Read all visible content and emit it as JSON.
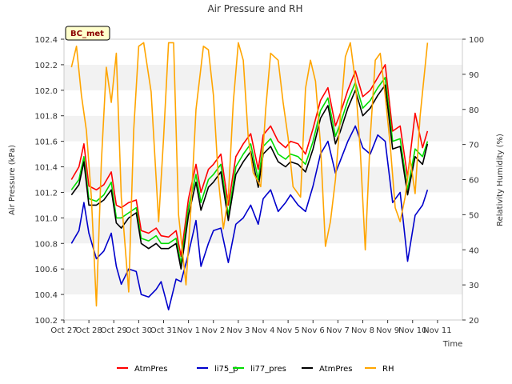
{
  "chart_data": {
    "type": "line",
    "title": "Air Pressure and RH",
    "site_label": "BC_met",
    "xlabel": "Time",
    "ylabel": "Air Pressure (kPa)",
    "y2label": "Relativity Humidity (%)",
    "x_ticks": [
      "Oct 27",
      "Oct 28",
      "Oct 29",
      "Oct 30",
      "Oct 31",
      "Nov 1",
      "Nov 2",
      "Nov 3",
      "Nov 4",
      "Nov 5",
      "Nov 6",
      "Nov 7",
      "Nov 8",
      "Nov 9",
      "Nov 10",
      "Nov 11"
    ],
    "xlim": [
      0,
      16
    ],
    "ylim": [
      100.2,
      102.4
    ],
    "y_ticks": [
      100.2,
      100.4,
      100.6,
      100.8,
      101.0,
      101.2,
      101.4,
      101.6,
      101.8,
      102.0,
      102.2,
      102.4
    ],
    "y_tick_labels": [
      "100.2",
      "100.4",
      "100.6",
      "100.8",
      "101.0",
      "101.2",
      "101.4",
      "101.6",
      "101.8",
      "102.0",
      "102.2",
      "102.4"
    ],
    "y2lim": [
      20,
      100
    ],
    "y2_ticks": [
      20,
      30,
      40,
      50,
      60,
      70,
      80,
      90,
      100
    ],
    "y2_tick_labels": [
      "20",
      "30",
      "40",
      "50",
      "60",
      "70",
      "80",
      "90",
      "100"
    ],
    "grid": "horizontal bands",
    "legend_position": "bottom",
    "series": [
      {
        "name": "AtmPres",
        "color": "#ff0000",
        "axis": "left",
        "x": [
          0.3,
          0.6,
          0.8,
          1.0,
          1.3,
          1.6,
          1.9,
          2.1,
          2.3,
          2.6,
          2.9,
          3.1,
          3.4,
          3.7,
          3.9,
          4.2,
          4.5,
          4.7,
          5.0,
          5.3,
          5.5,
          5.8,
          6.0,
          6.3,
          6.6,
          6.9,
          7.2,
          7.5,
          7.8,
          8.0,
          8.3,
          8.6,
          8.9,
          9.1,
          9.4,
          9.7,
          10.0,
          10.3,
          10.6,
          10.9,
          11.1,
          11.4,
          11.7,
          12.0,
          12.3,
          12.6,
          12.9,
          13.2,
          13.5,
          13.8,
          14.1,
          14.4,
          14.6
        ],
        "values": [
          101.3,
          101.4,
          101.58,
          101.25,
          101.22,
          101.26,
          101.36,
          101.1,
          101.08,
          101.12,
          101.14,
          100.9,
          100.88,
          100.92,
          100.86,
          100.85,
          100.9,
          100.7,
          101.15,
          101.42,
          101.2,
          101.38,
          101.42,
          101.5,
          101.1,
          101.48,
          101.58,
          101.66,
          101.38,
          101.65,
          101.72,
          101.6,
          101.55,
          101.6,
          101.58,
          101.5,
          101.7,
          101.92,
          102.02,
          101.72,
          101.82,
          102.0,
          102.15,
          101.95,
          102.0,
          102.1,
          102.2,
          101.68,
          101.72,
          101.32,
          101.82,
          101.55,
          101.68
        ]
      },
      {
        "name": "li75_p",
        "color": "#0000cc",
        "axis": "left",
        "x": [
          0.3,
          0.6,
          0.8,
          1.0,
          1.3,
          1.6,
          1.9,
          2.1,
          2.3,
          2.6,
          2.9,
          3.1,
          3.4,
          3.7,
          3.9,
          4.2,
          4.5,
          4.7,
          5.0,
          5.3,
          5.5,
          5.8,
          6.0,
          6.3,
          6.6,
          6.9,
          7.2,
          7.5,
          7.8,
          8.0,
          8.3,
          8.6,
          8.9,
          9.1,
          9.4,
          9.7,
          10.0,
          10.3,
          10.6,
          10.9,
          11.1,
          11.4,
          11.7,
          12.0,
          12.3,
          12.6,
          12.9,
          13.2,
          13.5,
          13.8,
          14.1,
          14.4,
          14.6
        ],
        "values": [
          100.8,
          100.9,
          101.12,
          100.88,
          100.68,
          100.74,
          100.88,
          100.62,
          100.48,
          100.6,
          100.58,
          100.4,
          100.38,
          100.44,
          100.5,
          100.28,
          100.52,
          100.5,
          100.72,
          100.98,
          100.62,
          100.8,
          100.9,
          100.92,
          100.65,
          100.95,
          101.0,
          101.1,
          100.95,
          101.15,
          101.22,
          101.05,
          101.12,
          101.18,
          101.1,
          101.05,
          101.25,
          101.5,
          101.6,
          101.35,
          101.45,
          101.6,
          101.72,
          101.55,
          101.5,
          101.65,
          101.6,
          101.12,
          101.2,
          100.66,
          101.02,
          101.1,
          101.22
        ]
      },
      {
        "name": "li77_pres",
        "color": "#00dd00",
        "axis": "left",
        "x": [
          0.3,
          0.6,
          0.8,
          1.0,
          1.3,
          1.6,
          1.9,
          2.1,
          2.3,
          2.6,
          2.9,
          3.1,
          3.4,
          3.7,
          3.9,
          4.2,
          4.5,
          4.7,
          5.0,
          5.3,
          5.5,
          5.8,
          6.0,
          6.3,
          6.6,
          6.9,
          7.2,
          7.5,
          7.8,
          8.0,
          8.3,
          8.6,
          8.9,
          9.1,
          9.4,
          9.7,
          10.0,
          10.3,
          10.6,
          10.9,
          11.1,
          11.4,
          11.7,
          12.0,
          12.3,
          12.6,
          12.9,
          13.2,
          13.5,
          13.8,
          14.1,
          14.4,
          14.6
        ],
        "values": [
          101.22,
          101.3,
          101.48,
          101.15,
          101.13,
          101.18,
          101.28,
          101.0,
          101.0,
          101.04,
          101.08,
          100.84,
          100.82,
          100.86,
          100.8,
          100.8,
          100.84,
          100.64,
          101.08,
          101.34,
          101.12,
          101.3,
          101.34,
          101.42,
          101.02,
          101.4,
          101.5,
          101.58,
          101.3,
          101.56,
          101.62,
          101.5,
          101.46,
          101.5,
          101.48,
          101.42,
          101.6,
          101.84,
          101.94,
          101.64,
          101.74,
          101.92,
          102.06,
          101.86,
          101.92,
          102.02,
          102.1,
          101.6,
          101.62,
          101.22,
          101.54,
          101.48,
          101.6
        ]
      },
      {
        "name": "AtmPres",
        "color": "#000000",
        "axis": "left",
        "x": [
          0.3,
          0.6,
          0.8,
          1.0,
          1.3,
          1.6,
          1.9,
          2.1,
          2.3,
          2.6,
          2.9,
          3.1,
          3.4,
          3.7,
          3.9,
          4.2,
          4.5,
          4.7,
          5.0,
          5.3,
          5.5,
          5.8,
          6.0,
          6.3,
          6.6,
          6.9,
          7.2,
          7.5,
          7.8,
          8.0,
          8.3,
          8.6,
          8.9,
          9.1,
          9.4,
          9.7,
          10.0,
          10.3,
          10.6,
          10.9,
          11.1,
          11.4,
          11.7,
          12.0,
          12.3,
          12.6,
          12.9,
          13.2,
          13.5,
          13.8,
          14.1,
          14.4,
          14.6
        ],
        "values": [
          101.18,
          101.26,
          101.44,
          101.1,
          101.1,
          101.14,
          101.22,
          100.96,
          100.92,
          101.0,
          101.04,
          100.8,
          100.76,
          100.8,
          100.76,
          100.76,
          100.8,
          100.6,
          101.02,
          101.28,
          101.06,
          101.24,
          101.28,
          101.36,
          100.98,
          101.34,
          101.44,
          101.52,
          101.24,
          101.5,
          101.56,
          101.44,
          101.4,
          101.44,
          101.42,
          101.36,
          101.54,
          101.78,
          101.88,
          101.58,
          101.68,
          101.86,
          102.0,
          101.8,
          101.86,
          101.96,
          102.04,
          101.54,
          101.56,
          101.18,
          101.48,
          101.42,
          101.58
        ]
      },
      {
        "name": "RH",
        "color": "#ffa500",
        "axis": "right",
        "x": [
          0.3,
          0.5,
          0.7,
          0.9,
          1.1,
          1.3,
          1.5,
          1.7,
          1.9,
          2.1,
          2.3,
          2.6,
          2.8,
          3.0,
          3.2,
          3.5,
          3.8,
          4.0,
          4.2,
          4.4,
          4.6,
          4.9,
          5.1,
          5.3,
          5.6,
          5.8,
          6.0,
          6.2,
          6.4,
          6.6,
          6.8,
          7.0,
          7.2,
          7.4,
          7.6,
          7.9,
          8.1,
          8.3,
          8.6,
          8.8,
          9.0,
          9.2,
          9.5,
          9.7,
          9.9,
          10.1,
          10.3,
          10.5,
          10.7,
          10.9,
          11.1,
          11.3,
          11.5,
          11.7,
          11.9,
          12.1,
          12.3,
          12.5,
          12.7,
          12.9,
          13.1,
          13.3,
          13.5,
          13.7,
          13.9,
          14.1,
          14.3,
          14.5,
          14.6
        ],
        "values": [
          92,
          98,
          84,
          74,
          55,
          24,
          65,
          92,
          82,
          96,
          55,
          28,
          74,
          98,
          99,
          85,
          48,
          72,
          99,
          99,
          50,
          30,
          52,
          80,
          98,
          97,
          84,
          60,
          46,
          55,
          82,
          99,
          94,
          72,
          62,
          58,
          80,
          96,
          94,
          82,
          72,
          58,
          55,
          86,
          94,
          88,
          70,
          41,
          48,
          60,
          78,
          95,
          99,
          88,
          68,
          40,
          72,
          94,
          96,
          84,
          70,
          52,
          48,
          55,
          66,
          56,
          78,
          92,
          99
        ]
      }
    ]
  }
}
